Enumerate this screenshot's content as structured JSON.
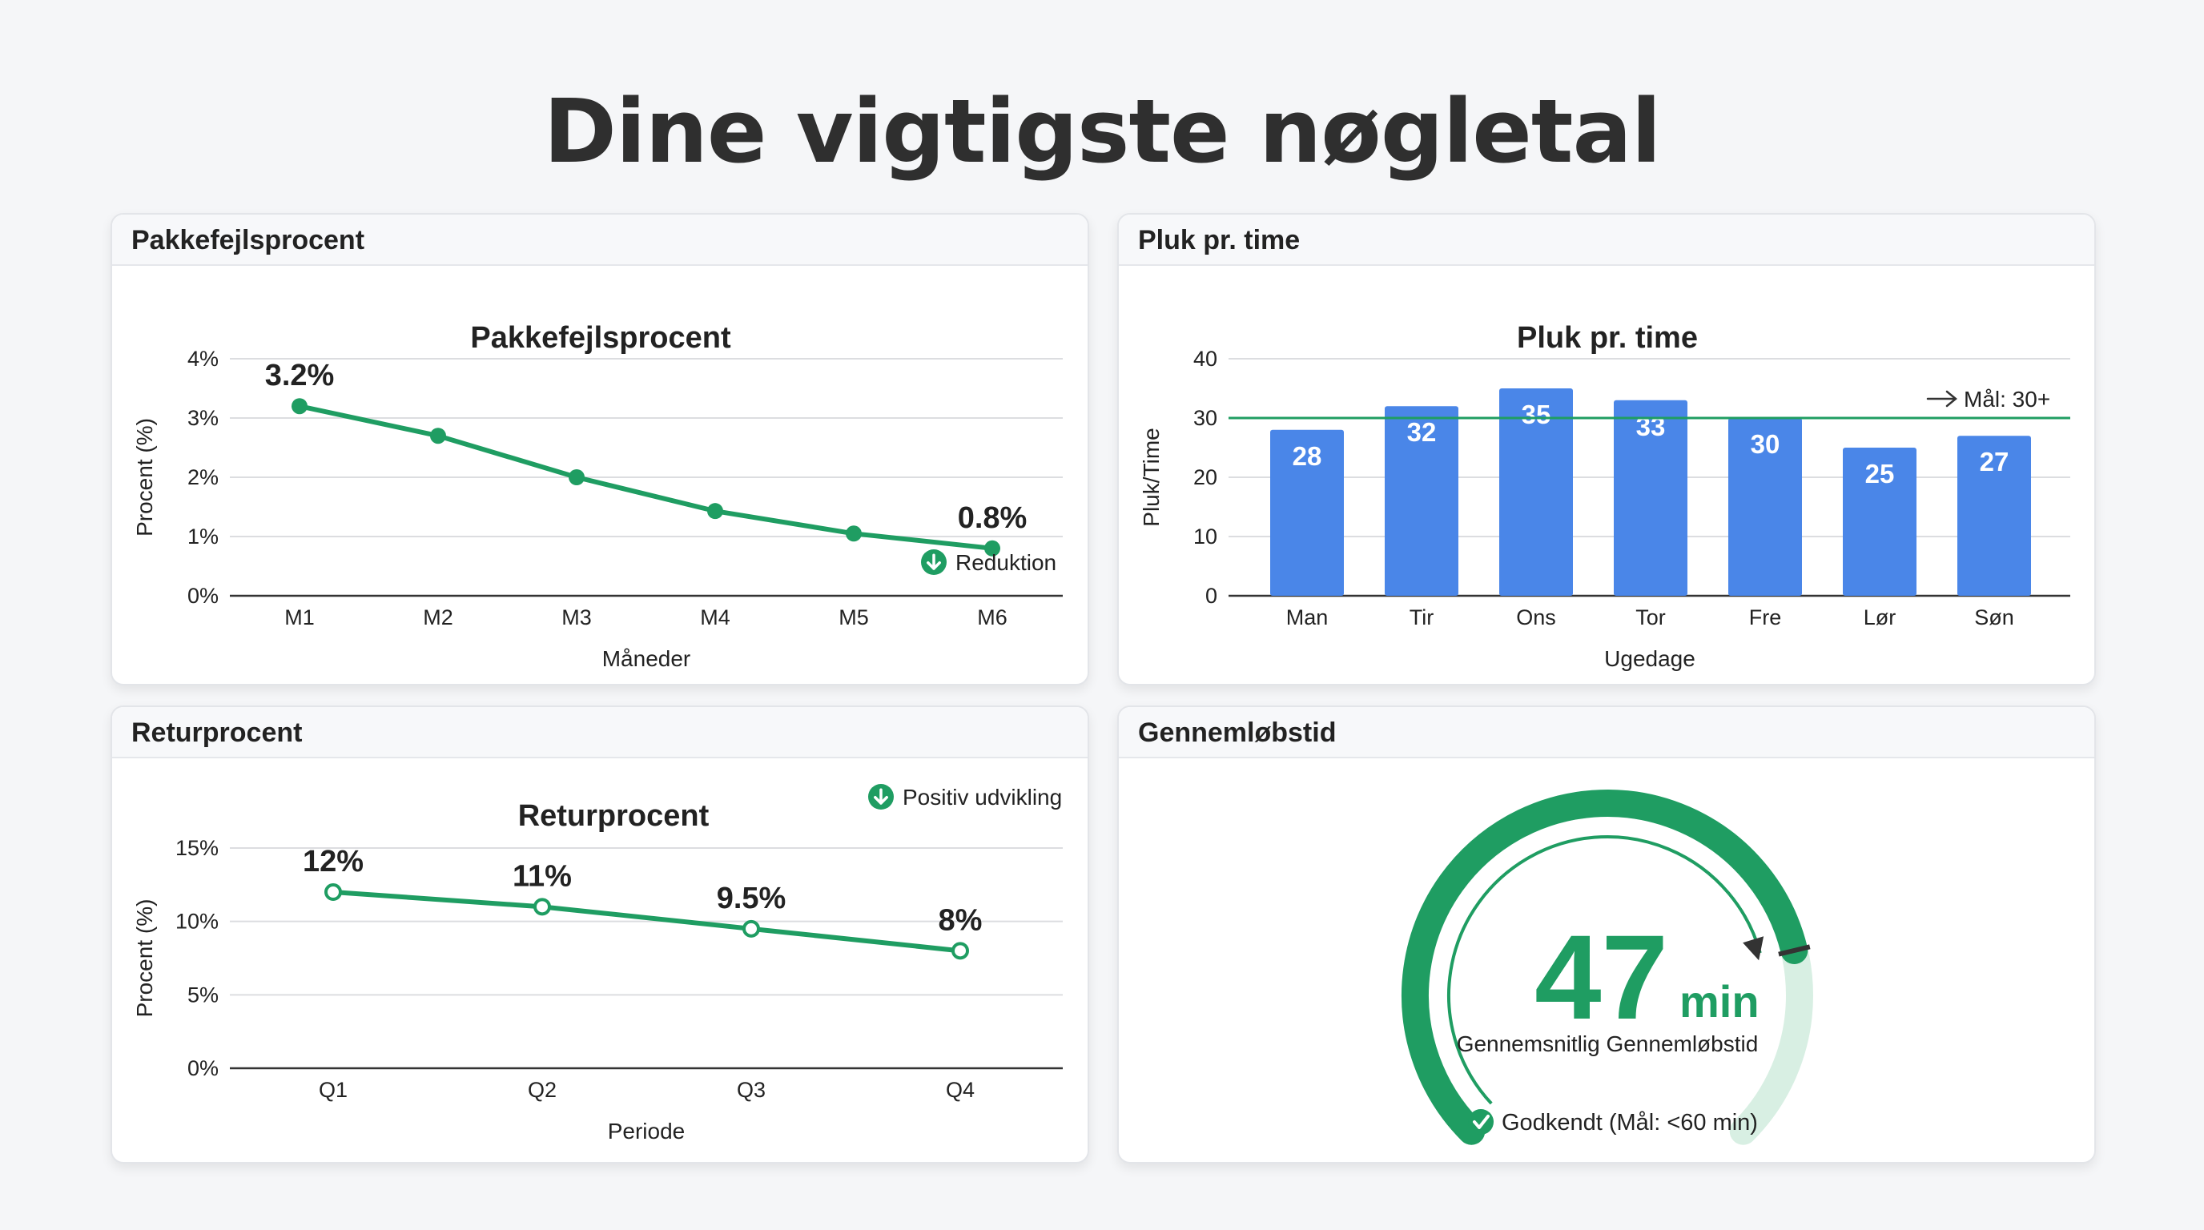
{
  "page": {
    "title": "Dine vigtigste nøgletal"
  },
  "colors": {
    "green": "#1f9d62",
    "green_light": "#d8efe3",
    "bar_blue": "#4a86e8",
    "dark": "#333333"
  },
  "cards": {
    "defect": {
      "header": "Pakkefejlsprocent"
    },
    "picks": {
      "header": "Pluk pr. time"
    },
    "return": {
      "header": "Returprocent"
    },
    "lead": {
      "header": "Gennemløbstid"
    }
  },
  "chart_data": [
    {
      "id": "defect",
      "type": "line",
      "title": "Pakkefejlsprocent",
      "xlabel": "Måneder",
      "ylabel": "Procent (%)",
      "categories": [
        "M1",
        "M2",
        "M3",
        "M4",
        "M5",
        "M6"
      ],
      "values": [
        3.2,
        2.7,
        2.0,
        1.43,
        1.05,
        0.8
      ],
      "ylim": [
        0,
        4
      ],
      "yticks": [
        0,
        1,
        2,
        3,
        4
      ],
      "ytick_labels": [
        "0%",
        "1%",
        "2%",
        "3%",
        "4%"
      ],
      "data_labels": [
        {
          "index": 0,
          "text": "3.2%"
        },
        {
          "index": 5,
          "text": "0.8%"
        }
      ],
      "annotation": {
        "text": "Reduktion",
        "icon": "arrow-down-circle-icon"
      },
      "grid": true,
      "color": "#1f9d62"
    },
    {
      "id": "picks",
      "type": "bar",
      "title": "Pluk pr. time",
      "xlabel": "Ugedage",
      "ylabel": "Pluk/Time",
      "categories": [
        "Man",
        "Tir",
        "Ons",
        "Tor",
        "Fre",
        "Lør",
        "Søn"
      ],
      "values": [
        28,
        32,
        35,
        33,
        30,
        25,
        27
      ],
      "value_labels": [
        "28",
        "32",
        "35",
        "33",
        "30",
        "25",
        "27"
      ],
      "ylim": [
        0,
        40
      ],
      "yticks": [
        0,
        10,
        20,
        30,
        40
      ],
      "ytick_labels": [
        "0",
        "10",
        "20",
        "30",
        "40"
      ],
      "target": {
        "value": 30,
        "label": "Mål: 30+",
        "icon": "arrow-right-icon"
      },
      "grid": true,
      "color": "#4a86e8"
    },
    {
      "id": "return",
      "type": "line",
      "title": "Returprocent",
      "xlabel": "Periode",
      "ylabel": "Procent (%)",
      "categories": [
        "Q1",
        "Q2",
        "Q3",
        "Q4"
      ],
      "values": [
        12,
        11,
        9.5,
        8
      ],
      "data_labels": [
        {
          "index": 0,
          "text": "12%"
        },
        {
          "index": 1,
          "text": "11%"
        },
        {
          "index": 2,
          "text": "9.5%"
        },
        {
          "index": 3,
          "text": "8%"
        }
      ],
      "ylim": [
        0,
        15
      ],
      "yticks": [
        0,
        5,
        10,
        15
      ],
      "ytick_labels": [
        "0%",
        "5%",
        "10%",
        "15%"
      ],
      "annotation": {
        "text": "Positiv udvikling",
        "icon": "arrow-down-circle-icon"
      },
      "grid": true,
      "color": "#1f9d62"
    },
    {
      "id": "lead",
      "type": "gauge",
      "value": 47,
      "value_text": "47",
      "unit": "min",
      "max": 60,
      "label": "Gennemsnitlig Gennemløbstid",
      "status": {
        "text": "Godkendt (Mål: <60 min)",
        "icon": "check-circle-icon"
      },
      "color": "#1f9d62"
    }
  ]
}
